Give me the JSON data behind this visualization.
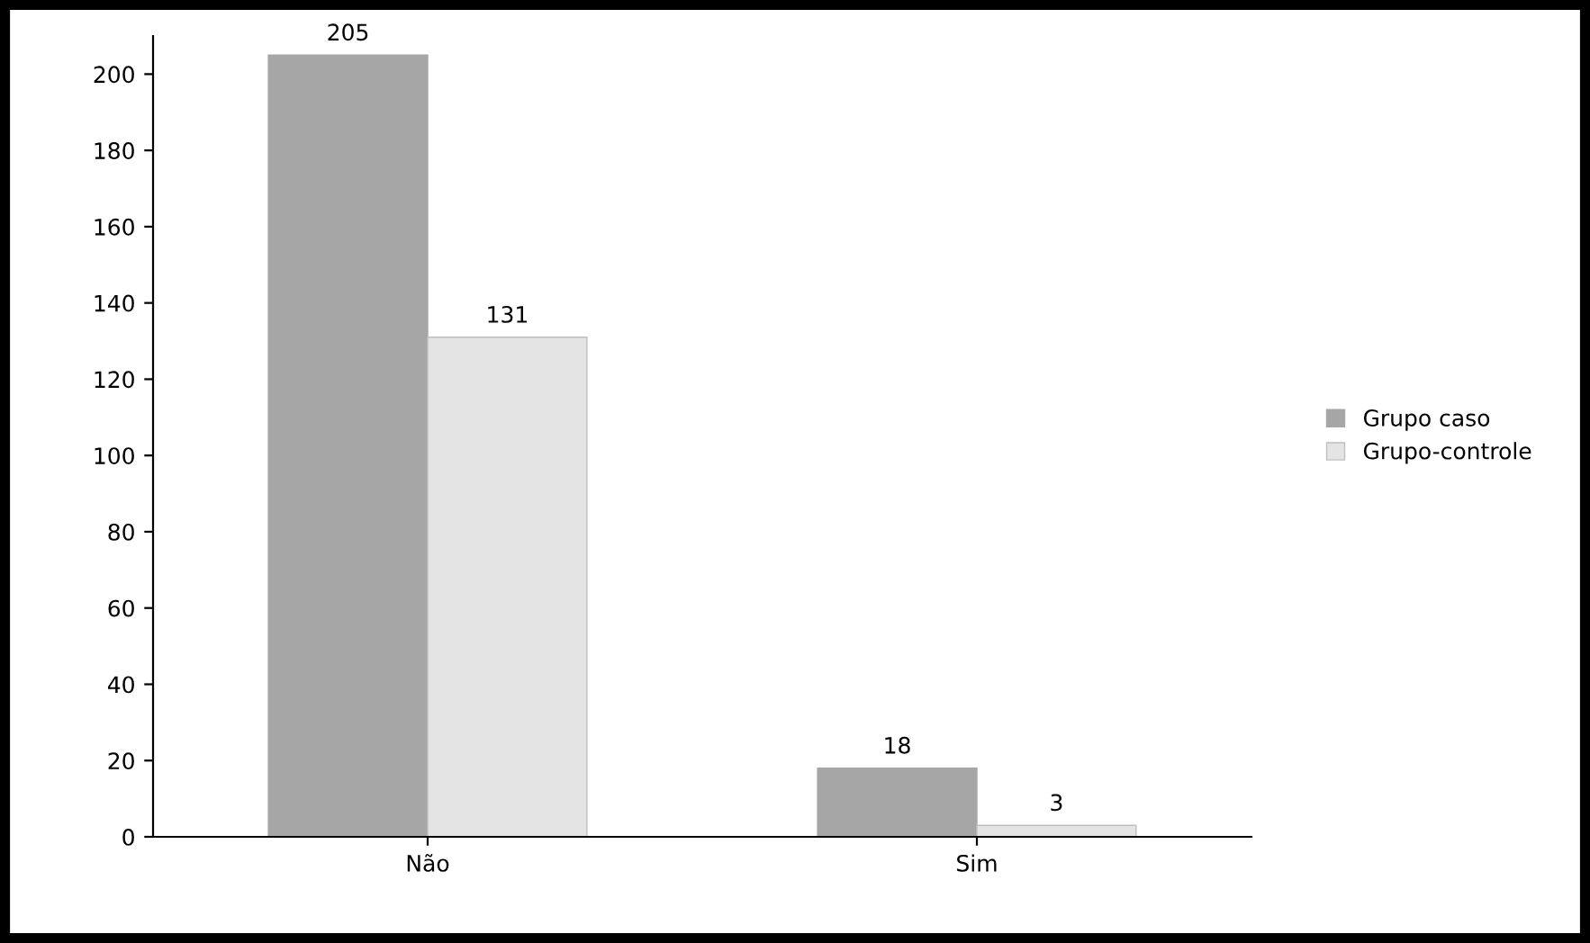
{
  "chart_data": {
    "type": "bar",
    "categories": [
      "Não",
      "Sim"
    ],
    "series": [
      {
        "name": "Grupo caso",
        "color": "#a6a6a6",
        "values": [
          205,
          18
        ]
      },
      {
        "name": "Grupo-controle",
        "color": "#e4e4e4",
        "values": [
          131,
          3
        ]
      }
    ],
    "ylim": [
      0,
      210
    ],
    "yticks": [
      0,
      20,
      40,
      60,
      80,
      100,
      120,
      140,
      160,
      180,
      200
    ],
    "data_labels": true,
    "legend": "right",
    "grid": false
  }
}
